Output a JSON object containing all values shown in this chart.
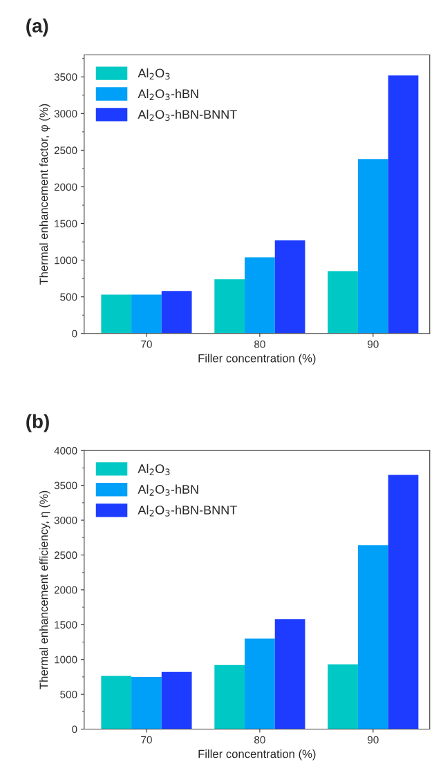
{
  "chart_data": [
    {
      "type": "bar",
      "title": "(a)",
      "xlabel": "Filler concentration (%)",
      "ylabel": "Thermal enhancement factor, φ (%)",
      "categories": [
        "70",
        "80",
        "90"
      ],
      "series": [
        {
          "name": "Al$_{2}$O$_{3}$",
          "color": "#00c8c4",
          "values": [
            530,
            740,
            850
          ]
        },
        {
          "name": "Al$_{2}$O$_{3}$-hBN",
          "color": "#00a0f8",
          "values": [
            530,
            1040,
            2380
          ]
        },
        {
          "name": "Al$_{2}$O$_{3}$-hBN-BNNT",
          "color": "#1e3cff",
          "values": [
            580,
            1270,
            3520
          ]
        }
      ],
      "ylim": [
        0,
        3800
      ],
      "yticks": [
        0,
        500,
        1000,
        1500,
        2000,
        2500,
        3000,
        3500
      ],
      "legend": "top left",
      "grid": false
    },
    {
      "type": "bar",
      "title": "(b)",
      "xlabel": "Filler concentration (%)",
      "ylabel": "Thermal enhancement efficiency, η (%)",
      "categories": [
        "70",
        "80",
        "90"
      ],
      "series": [
        {
          "name": "Al$_{2}$O$_{3}$",
          "color": "#00c8c4",
          "values": [
            765,
            920,
            930
          ]
        },
        {
          "name": "Al$_{2}$O$_{3}$-hBN",
          "color": "#00a0f8",
          "values": [
            750,
            1300,
            2640
          ]
        },
        {
          "name": "Al$_{2}$O$_{3}$-hBN-BNNT",
          "color": "#1e3cff",
          "values": [
            820,
            1580,
            3650
          ]
        }
      ],
      "ylim": [
        0,
        4000
      ],
      "yticks": [
        0,
        500,
        1000,
        1500,
        2000,
        2500,
        3000,
        3500,
        4000
      ],
      "legend": "top left",
      "grid": false
    }
  ]
}
